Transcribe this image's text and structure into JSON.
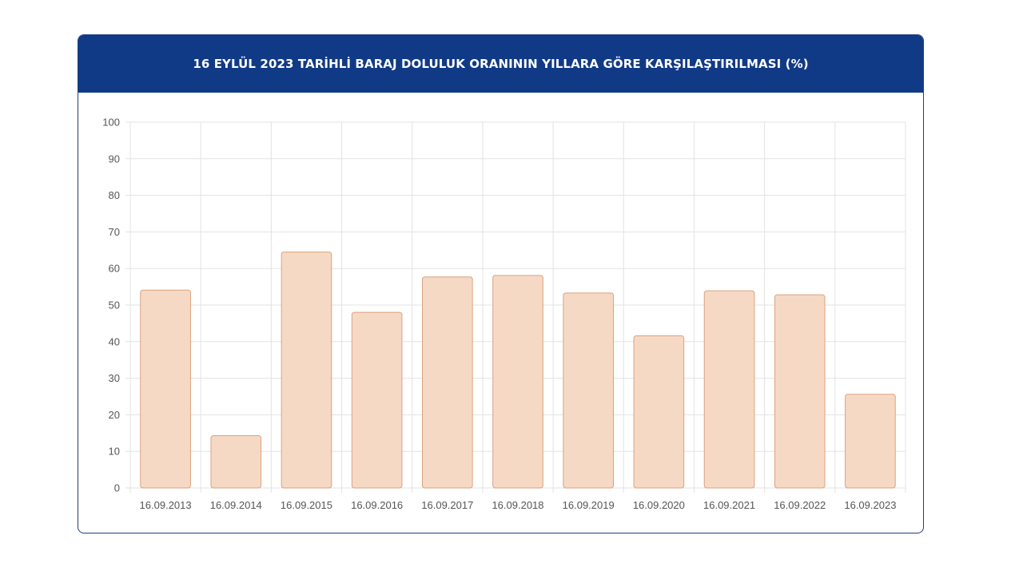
{
  "chart_data": {
    "type": "bar",
    "title": "16 EYLÜL 2023 TARİHLİ BARAJ DOLULUK ORANININ YILLARA GÖRE KARŞILAŞTIRILMASI (%)",
    "categories": [
      "16.09.2013",
      "16.09.2014",
      "16.09.2015",
      "16.09.2016",
      "16.09.2017",
      "16.09.2018",
      "16.09.2019",
      "16.09.2020",
      "16.09.2021",
      "16.09.2022",
      "16.09.2023"
    ],
    "values": [
      54.1,
      14.3,
      64.5,
      48.0,
      57.7,
      58.1,
      53.3,
      41.6,
      53.9,
      52.8,
      25.6
    ],
    "ylim": [
      0,
      100
    ],
    "yticks": [
      "0",
      "10",
      "20",
      "30",
      "40",
      "50",
      "60",
      "70",
      "80",
      "90",
      "100"
    ],
    "grid": true,
    "legend": "none",
    "colors": {
      "header": "#113a86",
      "bar_fill": "#f6d9c5",
      "bar_stroke": "#d9a27f",
      "grid": "#e3e3e3"
    }
  }
}
